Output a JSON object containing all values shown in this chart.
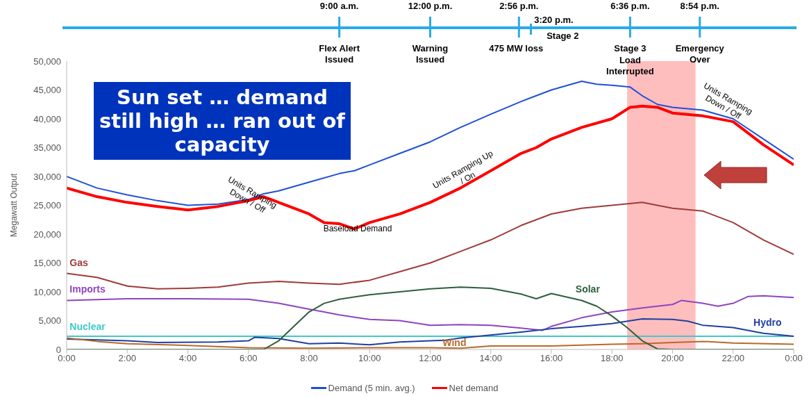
{
  "chart_data": {
    "type": "line",
    "ylabel": "Megawatt Output",
    "xlim": [
      0,
      24
    ],
    "ylim": [
      0,
      50000
    ],
    "xticks": [
      {
        "value": 0,
        "label": "0:00"
      },
      {
        "value": 2,
        "label": "2:00"
      },
      {
        "value": 4,
        "label": "4:00"
      },
      {
        "value": 6,
        "label": "6:00"
      },
      {
        "value": 8,
        "label": "8:00"
      },
      {
        "value": 10,
        "label": "10:00"
      },
      {
        "value": 12,
        "label": "12:00"
      },
      {
        "value": 14,
        "label": "14:00"
      },
      {
        "value": 16,
        "label": "16:00"
      },
      {
        "value": 18,
        "label": "18:00"
      },
      {
        "value": 20,
        "label": "20:00"
      },
      {
        "value": 22,
        "label": "22:00"
      },
      {
        "value": 24,
        "label": "0:00"
      }
    ],
    "yticks": [
      0,
      {
        "value": 5000,
        "label": "5,000"
      },
      {
        "value": 10000,
        "label": "10,000"
      },
      {
        "value": 15000,
        "label": "15,000"
      },
      {
        "value": 20000,
        "label": "20,000"
      },
      {
        "value": 25000,
        "label": "25,000"
      },
      {
        "value": 30000,
        "label": "30,000"
      },
      {
        "value": 35000,
        "label": "35,000"
      },
      {
        "value": 40000,
        "label": "40,000"
      },
      {
        "value": 45000,
        "label": "45,000"
      },
      {
        "value": 50000,
        "label": "50,000"
      }
    ],
    "x2lim": [
      0,
      24
    ],
    "x2ticks": [
      {
        "value": 9,
        "label": "9:00 a.m."
      },
      {
        "value": 12,
        "label": "12:00 p.m."
      },
      {
        "value": 14.93,
        "label": "2:56 p.m."
      },
      {
        "value": 18.6,
        "label": "6:36 p.m."
      },
      {
        "value": 20.9,
        "label": "8:54 p.m."
      }
    ],
    "series": [
      {
        "name": "Demand (5 min. avg.)",
        "color": "#1f4fd8",
        "x": [
          0,
          1,
          2,
          3,
          4,
          5,
          6,
          6.5,
          7,
          8,
          9,
          9.5,
          10,
          11,
          12,
          13,
          14,
          15,
          16,
          17,
          17.5,
          18,
          18.6,
          19,
          19.5,
          20,
          21,
          22,
          23,
          24
        ],
        "values": [
          30000,
          28000,
          26800,
          25800,
          25000,
          25200,
          26000,
          27000,
          27500,
          29000,
          30500,
          31000,
          32000,
          34000,
          36000,
          38500,
          40800,
          43000,
          45000,
          46500,
          46000,
          45800,
          45500,
          44000,
          42500,
          42000,
          41500,
          40000,
          36500,
          33000
        ]
      },
      {
        "name": "Net demand",
        "color": "#ff0000",
        "x": [
          0,
          1,
          2,
          3,
          4,
          5,
          6,
          6.5,
          7,
          8,
          8.5,
          9,
          9.5,
          10,
          11,
          12,
          13,
          14,
          14.5,
          15,
          15.5,
          16,
          17,
          18,
          18.3,
          18.6,
          19,
          19.5,
          20,
          21,
          22,
          23,
          24
        ],
        "values": [
          28000,
          26500,
          25500,
          24800,
          24200,
          24800,
          25800,
          26500,
          25500,
          23500,
          22000,
          21800,
          20900,
          22000,
          23500,
          25500,
          28000,
          31000,
          32500,
          34000,
          35000,
          36500,
          38500,
          40000,
          41000,
          42000,
          42200,
          42000,
          41000,
          40500,
          39500,
          35500,
          32000
        ]
      },
      {
        "name": "Gas",
        "color": "#a03a3a",
        "x": [
          0,
          1,
          2,
          3,
          4,
          5,
          6,
          7,
          8,
          9,
          10,
          11,
          12,
          13,
          14,
          15,
          16,
          17,
          18,
          19,
          20,
          21,
          22,
          23,
          24
        ],
        "values": [
          13200,
          12500,
          11000,
          10500,
          10600,
          10800,
          11500,
          11800,
          11500,
          11300,
          12000,
          13500,
          15000,
          17000,
          19000,
          21500,
          23500,
          24500,
          25000,
          25500,
          24500,
          24000,
          22000,
          19000,
          16500
        ]
      },
      {
        "name": "Imports",
        "color": "#8e44c0",
        "x": [
          0,
          2,
          4,
          6,
          7,
          8,
          8.5,
          9,
          10,
          11,
          12,
          13,
          14,
          15,
          15.7,
          16,
          17,
          18,
          19,
          20,
          20.3,
          21,
          21.5,
          22,
          22.5,
          23,
          24
        ],
        "values": [
          8500,
          8800,
          8800,
          8700,
          8000,
          7000,
          6500,
          6000,
          5200,
          5000,
          4200,
          4300,
          4200,
          3700,
          3300,
          4000,
          5500,
          6500,
          7200,
          7800,
          8500,
          8000,
          7500,
          8000,
          9200,
          9300,
          9000
        ]
      },
      {
        "name": "Nuclear",
        "color": "#40c8c8",
        "x": [
          0,
          24
        ],
        "values": [
          2300,
          2300
        ]
      },
      {
        "name": "Hydro",
        "color": "#1f3fa0",
        "x": [
          0,
          2,
          3,
          5,
          6,
          6.2,
          7,
          8,
          9,
          10,
          11,
          12,
          12.5,
          13,
          14,
          15,
          16,
          17,
          18,
          19,
          20,
          20.5,
          21,
          22,
          23,
          24
        ],
        "values": [
          1800,
          1500,
          1200,
          1300,
          1500,
          2100,
          1900,
          1000,
          1100,
          800,
          1300,
          1500,
          1600,
          2000,
          2500,
          3000,
          3600,
          4000,
          4500,
          5300,
          5200,
          4900,
          4200,
          3800,
          2800,
          2300
        ]
      },
      {
        "name": "Wind",
        "color": "#b8692a",
        "x": [
          0,
          1,
          2,
          4,
          6,
          8,
          10,
          12,
          13,
          14,
          16,
          18,
          19,
          20,
          21,
          22,
          24
        ],
        "values": [
          2000,
          1400,
          1000,
          700,
          300,
          200,
          300,
          300,
          200,
          600,
          600,
          900,
          1000,
          1200,
          1400,
          1100,
          900
        ]
      },
      {
        "name": "Solar",
        "color": "#2e5e3a",
        "x": [
          0,
          6.5,
          7,
          7.5,
          8,
          8.5,
          9,
          10,
          11,
          12,
          13,
          14,
          15,
          15.5,
          16,
          17,
          17.5,
          18,
          18.5,
          19,
          19.5,
          20,
          24
        ],
        "values": [
          0,
          0,
          1500,
          4000,
          6500,
          8000,
          8700,
          9500,
          10000,
          10500,
          10800,
          10600,
          9600,
          8800,
          9700,
          8500,
          7500,
          5800,
          3800,
          1500,
          100,
          0,
          0
        ]
      }
    ],
    "bands": [
      {
        "axis": "x",
        "from": 18.5,
        "to": 20.76,
        "color": "#ffb3b3"
      }
    ],
    "annotations": [
      "Sun set … demand still high … ran out of capacity",
      "Flex Alert Issued",
      "Warning Issued",
      "475 MW loss",
      "Stage 2",
      "Stage 3",
      "Load Interrupted",
      "Emergency Over",
      "Units Ramping Down / Off",
      "Baseload Demand",
      "Units Ramping Up / On",
      "Units Ramping Down / Off",
      "3:20 p.m."
    ],
    "legend": "bottom",
    "grid": false,
    "line_style": "solid"
  }
}
